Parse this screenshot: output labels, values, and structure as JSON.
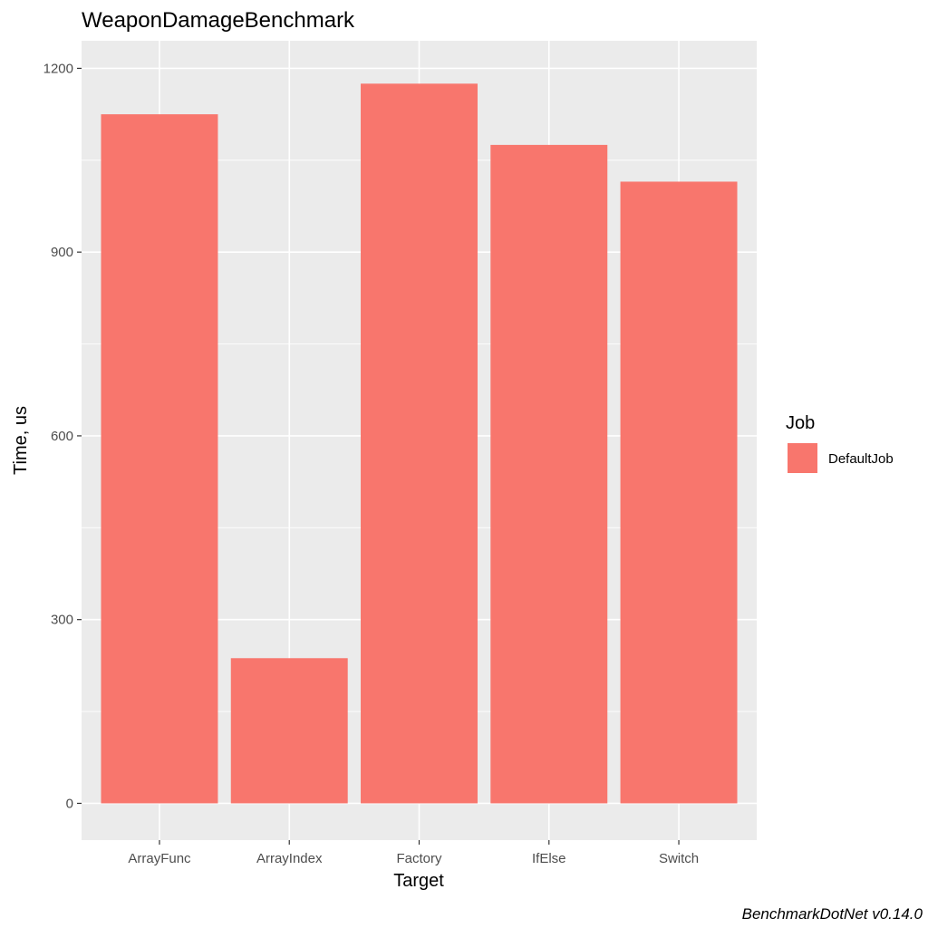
{
  "chart_data": {
    "type": "bar",
    "title": "WeaponDamageBenchmark",
    "xlabel": "Target",
    "ylabel": "Time, us",
    "categories": [
      "ArrayFunc",
      "ArrayIndex",
      "Factory",
      "IfElse",
      "Switch"
    ],
    "series": [
      {
        "name": "DefaultJob",
        "values": [
          1125,
          237,
          1175,
          1075,
          1015
        ]
      }
    ],
    "yticks": [
      "0",
      "300",
      "600",
      "900",
      "1200"
    ],
    "ylim": [
      -60,
      1245
    ],
    "grid": true,
    "legend": {
      "title": "Job",
      "position": "right"
    },
    "caption": "BenchmarkDotNet v0.14.0",
    "colors": {
      "bar": "#f8766d",
      "panel": "#ebebeb",
      "grid": "#ffffff",
      "tick_text": "#4d4d4d"
    }
  }
}
